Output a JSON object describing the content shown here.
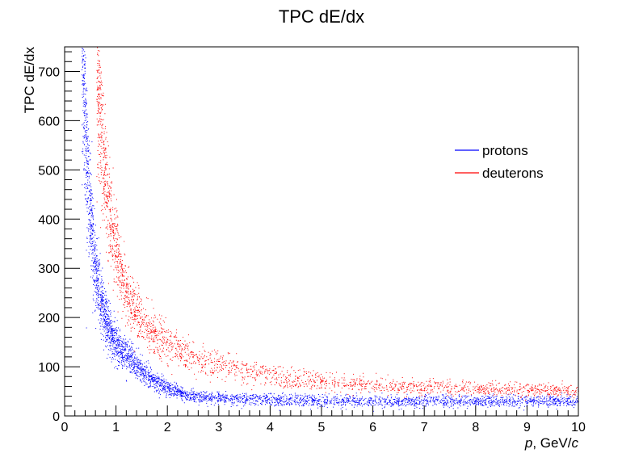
{
  "chart_data": {
    "type": "scatter",
    "title": "TPC dE/dx",
    "xlabel_italic_p": "p",
    "xlabel_mid": ", GeV/",
    "xlabel_italic_c": "c",
    "ylabel": "TPC dE/dx",
    "xlim": [
      0,
      10
    ],
    "ylim": [
      0,
      750
    ],
    "x_ticks": [
      "0",
      "1",
      "2",
      "3",
      "4",
      "5",
      "6",
      "7",
      "8",
      "9",
      "10"
    ],
    "y_ticks": [
      "0",
      "100",
      "200",
      "300",
      "400",
      "500",
      "600",
      "700"
    ],
    "grid": false,
    "legend_position": "top-right",
    "series": [
      {
        "name": "protons",
        "color": "#0000ff",
        "band": {
          "curve_constant": 110,
          "curve_exponent": 1.8,
          "minimum_ionizing": 20,
          "relativistic_rise": 40,
          "relative_width": 0.14,
          "offset_points": [
            0.4,
            0.8,
            1.2,
            1.6,
            2.0,
            2.5,
            3.0,
            4.0,
            6.0,
            8.0,
            10.0
          ],
          "offset_values": [
            0,
            10,
            28,
            16,
            5,
            0,
            0,
            4,
            6,
            8,
            10
          ]
        },
        "x_range": [
          0.33,
          10
        ]
      },
      {
        "name": "deuterons",
        "color": "#ff0000",
        "band": {
          "curve_constant": 300,
          "curve_exponent": 1.75,
          "minimum_ionizing": 30,
          "relativistic_rise": 30,
          "relative_width": 0.13,
          "offset_points": [
            0.6,
            1.2,
            1.6,
            2.0,
            2.5,
            3.0,
            4.0,
            6.0,
            8.0,
            10.0
          ],
          "offset_values": [
            0,
            8,
            20,
            30,
            32,
            30,
            24,
            20,
            18,
            18
          ]
        },
        "x_range": [
          0.62,
          10
        ]
      }
    ],
    "points_per_series": 18000
  }
}
